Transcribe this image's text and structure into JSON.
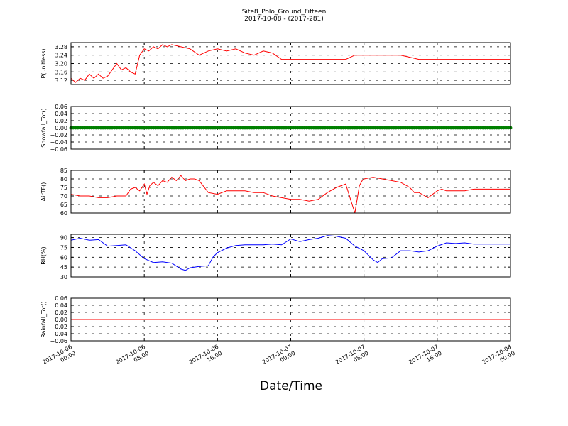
{
  "figure": {
    "title": "Site8_Polo_Ground_Fifteen",
    "subtitle": "2017-10-08 - (2017-281)",
    "xlabel": "Date/Time"
  },
  "chart_data": [
    {
      "type": "line",
      "ylabel": "P(unitless)",
      "ylim": [
        3.1,
        3.3
      ],
      "yticks": [
        "3.12",
        "3.16",
        "3.20",
        "3.24",
        "3.28"
      ],
      "yticks_values": [
        3.12,
        3.16,
        3.2,
        3.24,
        3.28
      ],
      "color": "#ff0000",
      "grid": true,
      "x_hours": [
        0,
        0.5,
        1,
        1.5,
        2,
        2.5,
        3,
        3.5,
        4,
        4.5,
        5,
        5.5,
        6,
        6.5,
        7,
        7.5,
        8,
        8.5,
        9,
        9.5,
        10,
        10.5,
        11,
        12,
        13,
        14,
        15,
        16,
        17,
        18,
        19,
        20,
        21,
        22,
        23,
        24,
        25,
        26,
        27,
        28,
        29,
        30,
        31,
        31.5,
        32,
        33,
        34,
        35,
        36,
        37,
        38,
        39,
        40,
        41,
        42,
        43,
        44,
        45,
        46,
        47,
        48
      ],
      "values": [
        3.13,
        3.11,
        3.13,
        3.12,
        3.15,
        3.13,
        3.15,
        3.13,
        3.14,
        3.17,
        3.2,
        3.17,
        3.18,
        3.16,
        3.15,
        3.24,
        3.27,
        3.26,
        3.28,
        3.27,
        3.29,
        3.28,
        3.29,
        3.28,
        3.27,
        3.24,
        3.26,
        3.27,
        3.26,
        3.27,
        3.25,
        3.24,
        3.26,
        3.25,
        3.22,
        3.22,
        3.22,
        3.22,
        3.22,
        3.22,
        3.22,
        3.22,
        3.24,
        3.24,
        3.24,
        3.24,
        3.24,
        3.24,
        3.24,
        3.23,
        3.22,
        3.22,
        3.22,
        3.22,
        3.22,
        3.22,
        3.22,
        3.22,
        3.22,
        3.22,
        3.22
      ]
    },
    {
      "type": "line",
      "ylabel": "Snowfall_Tot()",
      "ylim": [
        -0.06,
        0.06
      ],
      "yticks": [
        "−0.06",
        "−0.04",
        "−0.02",
        "0.00",
        "0.02",
        "0.04",
        "0.06"
      ],
      "yticks_values": [
        -0.06,
        -0.04,
        -0.02,
        0.0,
        0.02,
        0.04,
        0.06
      ],
      "color": "#008000",
      "markers": true,
      "grid": true,
      "x_hours": [
        0,
        48
      ],
      "values": [
        0,
        0
      ]
    },
    {
      "type": "line",
      "ylabel": "AirTF()",
      "ylim": [
        60,
        85
      ],
      "yticks": [
        "60",
        "65",
        "70",
        "75",
        "80",
        "85"
      ],
      "yticks_values": [
        60,
        65,
        70,
        75,
        80,
        85
      ],
      "color": "#ff0000",
      "grid": true,
      "x_hours": [
        0,
        1,
        2,
        3,
        4,
        5,
        6,
        6.5,
        7,
        7.5,
        8,
        8.3,
        8.6,
        9,
        9.5,
        10,
        10.5,
        11,
        11.5,
        12,
        12.5,
        13,
        13.5,
        14,
        15,
        16,
        17,
        18,
        19,
        20,
        21,
        22,
        23,
        24,
        25,
        26,
        27,
        28,
        29,
        30,
        31,
        31.5,
        31.8,
        32,
        33,
        34,
        35,
        36,
        37,
        37.5,
        38,
        39,
        40,
        40.5,
        41,
        42,
        43,
        44,
        45,
        46,
        47,
        48
      ],
      "values": [
        71,
        70,
        70,
        69,
        69,
        70,
        70,
        74,
        75,
        73,
        77,
        71,
        76,
        78,
        76,
        79,
        78,
        81,
        79,
        82,
        79,
        80,
        80,
        79,
        72,
        71,
        73,
        73,
        73,
        72,
        72,
        70,
        69,
        68,
        68,
        67,
        68,
        72,
        75,
        77,
        60,
        76,
        79,
        80,
        81,
        80,
        79,
        78,
        75,
        72,
        72,
        69,
        73,
        74,
        73,
        73,
        73,
        74,
        74,
        74,
        74,
        74
      ]
    },
    {
      "type": "line",
      "ylabel": "RH(%)",
      "ylim": [
        30,
        95
      ],
      "yticks": [
        "30",
        "45",
        "60",
        "75",
        "90"
      ],
      "yticks_values": [
        30,
        45,
        60,
        75,
        90
      ],
      "color": "#0000ff",
      "grid": true,
      "x_hours": [
        0,
        1,
        2,
        3,
        4,
        5,
        6,
        7,
        8,
        9,
        10,
        11,
        12,
        12.5,
        13,
        14,
        15,
        15.5,
        16,
        17,
        18,
        19,
        20,
        21,
        22,
        23,
        24,
        25,
        26,
        27,
        28,
        29,
        30,
        31,
        32,
        33,
        33.5,
        34,
        35,
        36,
        37,
        38,
        39,
        40,
        41,
        42,
        43,
        44,
        45,
        46,
        47,
        48
      ],
      "values": [
        86,
        89,
        86,
        87,
        77,
        78,
        79,
        70,
        58,
        52,
        53,
        51,
        42,
        40,
        44,
        46,
        47,
        60,
        67,
        74,
        78,
        79,
        79,
        79,
        80,
        79,
        88,
        84,
        87,
        89,
        93,
        92,
        89,
        77,
        70,
        56,
        52,
        58,
        59,
        70,
        70,
        68,
        70,
        77,
        82,
        81,
        82,
        80,
        80,
        80,
        80,
        80
      ]
    },
    {
      "type": "line",
      "ylabel": "Rainfall_Tot()",
      "ylim": [
        -0.06,
        0.06
      ],
      "yticks": [
        "−0.06",
        "−0.04",
        "−0.02",
        "0.00",
        "0.02",
        "0.04",
        "0.06"
      ],
      "yticks_values": [
        -0.06,
        -0.04,
        -0.02,
        0.0,
        0.02,
        0.04,
        0.06
      ],
      "color": "#ff0000",
      "grid": true,
      "x_hours": [
        0,
        48
      ],
      "values": [
        0,
        0
      ]
    }
  ],
  "x_axis": {
    "xlim_hours": [
      0,
      48
    ],
    "tick_hours": [
      0,
      8,
      16,
      24,
      32,
      40,
      48
    ],
    "tick_labels": [
      [
        "2017-10-06",
        "00:00"
      ],
      [
        "2017-10-06",
        "08:00"
      ],
      [
        "2017-10-06",
        "16:00"
      ],
      [
        "2017-10-07",
        "00:00"
      ],
      [
        "2017-10-07",
        "08:00"
      ],
      [
        "2017-10-07",
        "16:00"
      ],
      [
        "2017-10-08",
        "00:00"
      ]
    ]
  }
}
